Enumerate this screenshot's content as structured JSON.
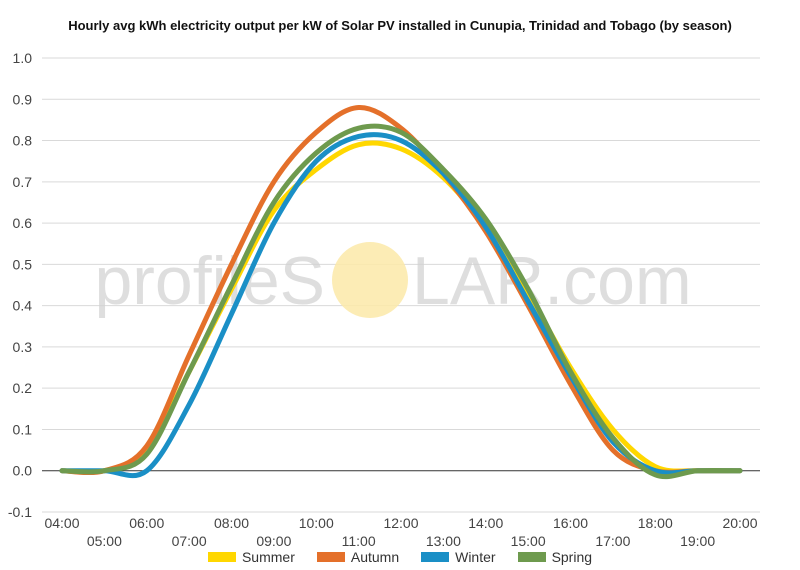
{
  "chart_data": {
    "type": "line",
    "title": "Hourly avg kWh electricity output per kW of Solar PV installed in Cunupia, Trinidad and Tobago (by season)",
    "x_ticks_upper": [
      "04:00",
      "06:00",
      "08:00",
      "10:00",
      "12:00",
      "14:00",
      "16:00",
      "18:00",
      "20:00"
    ],
    "x_ticks_lower": [
      "05:00",
      "07:00",
      "09:00",
      "11:00",
      "13:00",
      "15:00",
      "17:00",
      "19:00"
    ],
    "x": [
      "04:00",
      "05:00",
      "06:00",
      "07:00",
      "08:00",
      "09:00",
      "10:00",
      "11:00",
      "12:00",
      "13:00",
      "14:00",
      "15:00",
      "16:00",
      "17:00",
      "18:00",
      "19:00",
      "20:00"
    ],
    "ylim": [
      -0.1,
      1.0
    ],
    "y_ticks": [
      "-0.1",
      "0.0",
      "0.1",
      "0.2",
      "0.3",
      "0.4",
      "0.5",
      "0.6",
      "0.7",
      "0.8",
      "0.9",
      "1.0"
    ],
    "grid": true,
    "legend_position": "bottom",
    "series": [
      {
        "name": "Summer",
        "color": "#FFD700",
        "values": [
          0.0,
          0.0,
          0.05,
          0.24,
          0.44,
          0.63,
          0.73,
          0.79,
          0.78,
          0.71,
          0.59,
          0.43,
          0.25,
          0.1,
          0.01,
          0.0,
          0.0
        ]
      },
      {
        "name": "Autumn",
        "color": "#E4702A",
        "values": [
          0.0,
          0.0,
          0.06,
          0.28,
          0.5,
          0.7,
          0.82,
          0.88,
          0.83,
          0.72,
          0.58,
          0.4,
          0.21,
          0.05,
          0.0,
          0.0,
          0.0
        ]
      },
      {
        "name": "Winter",
        "color": "#1A8FC6",
        "values": [
          0.0,
          0.0,
          0.0,
          0.16,
          0.38,
          0.6,
          0.75,
          0.81,
          0.8,
          0.72,
          0.59,
          0.41,
          0.23,
          0.07,
          0.0,
          0.0,
          0.0
        ]
      },
      {
        "name": "Spring",
        "color": "#6E9A4E",
        "values": [
          0.0,
          0.0,
          0.04,
          0.24,
          0.45,
          0.65,
          0.77,
          0.83,
          0.82,
          0.73,
          0.61,
          0.44,
          0.24,
          0.08,
          -0.01,
          0.0,
          0.0
        ]
      }
    ]
  },
  "watermark": {
    "left": "profile",
    "right": "LAR.com",
    "sun_color": "#FBE9A8"
  }
}
